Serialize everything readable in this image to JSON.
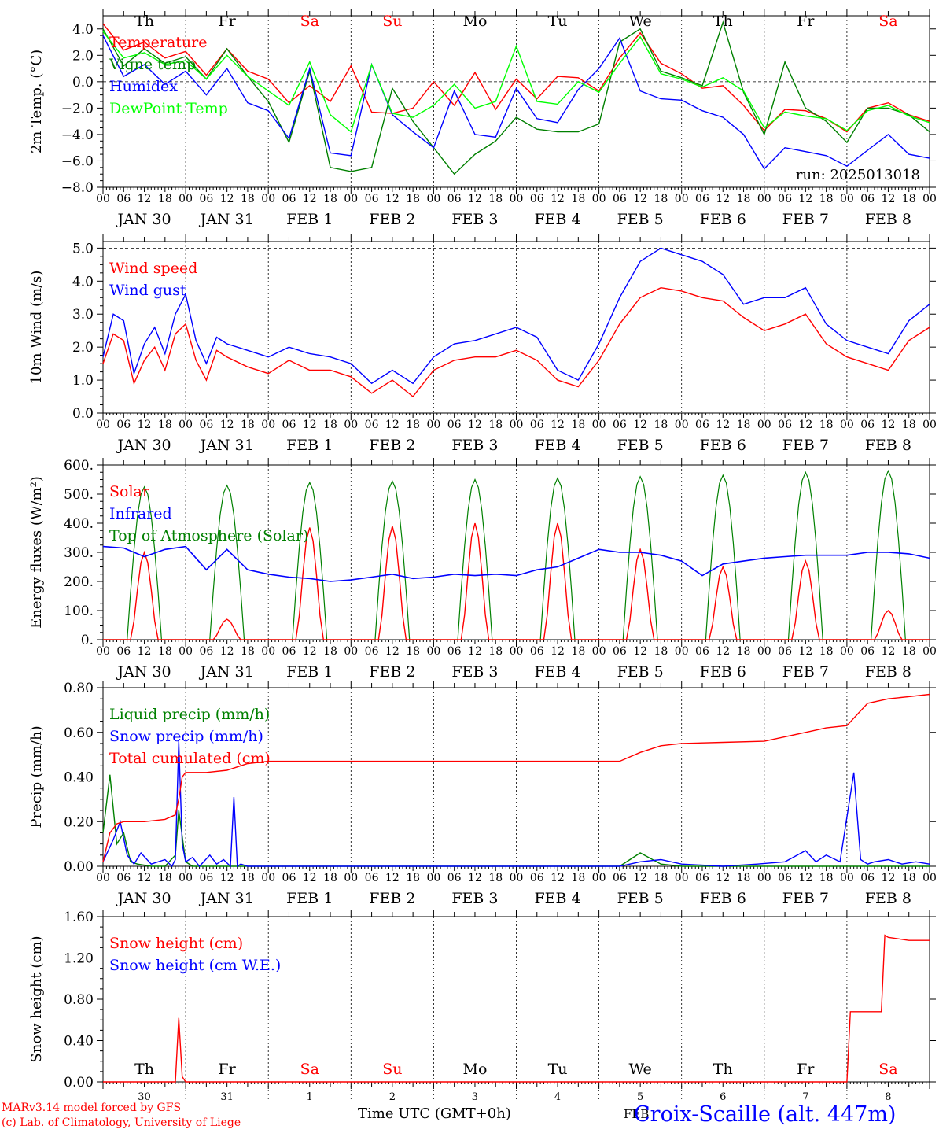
{
  "footer": {
    "credit_line1": "MARv3.14 model forced by GFS",
    "credit_line2": "(c) Lab. of Climatology, University of Liege",
    "xaxis_title": "Time UTC (GMT+0h)",
    "station": "Croix-Scaille (alt. 447m)",
    "month_label": "FEB"
  },
  "colors": {
    "red": "#ff0000",
    "green": "#008000",
    "blue": "#0000ff",
    "lightgreen": "#00ff00",
    "black": "#000000"
  },
  "hour_ticks": [
    "00",
    "06",
    "12",
    "18"
  ],
  "day_labels": [
    "JAN 30",
    "JAN 31",
    "FEB  1",
    "FEB  2",
    "FEB  3",
    "FEB  4",
    "FEB  5",
    "FEB  6",
    "FEB  7",
    "FEB  8"
  ],
  "weekdays": [
    "Th",
    "Fr",
    "Sa",
    "Su",
    "Mo",
    "Tu",
    "We",
    "Th",
    "Fr",
    "Sa"
  ],
  "weekday_colors": [
    "#000000",
    "#000000",
    "#ff0000",
    "#ff0000",
    "#000000",
    "#000000",
    "#000000",
    "#000000",
    "#000000",
    "#ff0000"
  ],
  "bottom_days": [
    "30",
    "31",
    "1",
    "2",
    "3",
    "4",
    "5",
    "6",
    "7",
    "8"
  ],
  "chart_data": [
    {
      "type": "line",
      "id": "temp",
      "ylabel": "2m Temp. (°C)",
      "ylim": [
        -8,
        5
      ],
      "yticks": [
        4,
        2,
        0,
        -2,
        -4,
        -6,
        -8
      ],
      "ytick_labels": [
        "4.0",
        "2.0",
        "0.0",
        "−2.0",
        "−4.0",
        "−6.0",
        "−8.0"
      ],
      "dashed_y": [
        0
      ],
      "annotation": "run: 2025013018",
      "legend": [
        "Temperature",
        "Vigne temp",
        "Humidex",
        "DewPoint Temp"
      ],
      "legend_colors": [
        "#ff0000",
        "#008000",
        "#0000ff",
        "#00ff00"
      ],
      "x_hours": [
        0,
        6,
        12,
        18,
        24,
        30,
        36,
        42,
        48,
        54,
        60,
        66,
        72,
        78,
        84,
        90,
        96,
        102,
        108,
        114,
        120,
        126,
        132,
        138,
        144,
        150,
        156,
        162,
        168,
        174,
        180,
        186,
        192,
        198,
        204,
        210,
        216,
        222,
        228,
        234,
        240
      ],
      "series": [
        {
          "name": "Temperature",
          "color": "#ff0000",
          "values": [
            4.4,
            2.4,
            3.0,
            1.8,
            2.3,
            0.5,
            2.5,
            0.8,
            0.2,
            -1.6,
            -0.3,
            -1.5,
            1.2,
            -2.3,
            -2.4,
            -2.0,
            0.0,
            -1.8,
            0.7,
            -2.1,
            0.2,
            -1.3,
            0.4,
            0.3,
            -0.7,
            1.8,
            3.7,
            1.4,
            0.6,
            -0.5,
            -0.3,
            -1.8,
            -3.7,
            -2.1,
            -2.2,
            -2.8,
            -3.8,
            -2.0,
            -1.6,
            -2.5,
            -3.0
          ]
        },
        {
          "name": "Vigne temp",
          "color": "#008000",
          "values": [
            4.0,
            1.2,
            2.5,
            1.4,
            1.9,
            0.2,
            2.5,
            0.4,
            -1.5,
            -4.6,
            0.8,
            -6.5,
            -6.8,
            -6.5,
            -0.5,
            -3.0,
            -5.0,
            -7.0,
            -5.5,
            -4.5,
            -2.7,
            -3.6,
            -3.8,
            -3.8,
            -3.2,
            3.0,
            4.0,
            0.8,
            0.3,
            -0.3,
            4.5,
            -0.8,
            -4.0,
            1.5,
            -2.0,
            -3.0,
            -4.6,
            -2.0,
            -2.0,
            -2.5,
            -3.8
          ]
        },
        {
          "name": "Humidex",
          "color": "#0000ff",
          "values": [
            3.5,
            0.4,
            1.3,
            -0.2,
            0.8,
            -1.0,
            1.0,
            -1.6,
            -2.2,
            -4.3,
            1.0,
            -5.4,
            -5.6,
            1.3,
            -2.5,
            -3.8,
            -5.0,
            -0.7,
            -4.0,
            -4.2,
            -0.5,
            -2.8,
            -3.1,
            -0.6,
            1.0,
            3.3,
            -0.7,
            -1.3,
            -1.4,
            -2.2,
            -2.7,
            -4.0,
            -6.6,
            -5.0,
            -5.3,
            -5.6,
            -6.4,
            -5.2,
            -4.0,
            -5.5,
            -5.8
          ]
        },
        {
          "name": "DewPoint Temp",
          "color": "#00ff00",
          "values": [
            3.8,
            1.8,
            2.2,
            1.3,
            1.6,
            0.2,
            2.0,
            0.4,
            -0.7,
            -1.8,
            1.5,
            -2.5,
            -3.8,
            1.3,
            -2.4,
            -2.7,
            -1.8,
            -0.2,
            -2.0,
            -1.5,
            2.7,
            -1.5,
            -1.7,
            0.0,
            -0.8,
            1.4,
            3.4,
            0.6,
            0.2,
            -0.4,
            0.3,
            -0.7,
            -3.5,
            -2.3,
            -2.6,
            -2.8,
            -3.7,
            -2.2,
            -1.8,
            -2.6,
            -3.1
          ]
        }
      ]
    },
    {
      "type": "line",
      "id": "wind",
      "ylabel": "10m Wind (m/s)",
      "ylim": [
        0,
        5.2
      ],
      "yticks": [
        0,
        1,
        2,
        3,
        4,
        5
      ],
      "ytick_labels": [
        "0.0",
        "1.0",
        "2.0",
        "3.0",
        "4.0",
        "5.0"
      ],
      "dashed_y": [
        5
      ],
      "legend": [
        "Wind speed",
        "Wind gust"
      ],
      "legend_colors": [
        "#ff0000",
        "#0000ff"
      ],
      "x_hours": [
        0,
        3,
        6,
        9,
        12,
        15,
        18,
        21,
        24,
        27,
        30,
        33,
        36,
        42,
        48,
        54,
        60,
        66,
        72,
        78,
        84,
        90,
        96,
        102,
        108,
        114,
        120,
        126,
        132,
        138,
        144,
        150,
        156,
        162,
        168,
        174,
        180,
        186,
        192,
        198,
        204,
        210,
        216,
        222,
        228,
        234,
        240
      ],
      "series": [
        {
          "name": "Wind speed",
          "color": "#ff0000",
          "values": [
            1.5,
            2.4,
            2.2,
            0.9,
            1.6,
            2.0,
            1.3,
            2.4,
            2.7,
            1.6,
            1.0,
            1.9,
            1.7,
            1.4,
            1.2,
            1.6,
            1.3,
            1.3,
            1.1,
            0.6,
            1.0,
            0.5,
            1.3,
            1.6,
            1.7,
            1.7,
            1.9,
            1.6,
            1.0,
            0.8,
            1.6,
            2.7,
            3.5,
            3.8,
            3.7,
            3.5,
            3.4,
            2.9,
            2.5,
            2.7,
            3.0,
            2.1,
            1.7,
            1.5,
            1.3,
            2.2,
            2.6
          ]
        },
        {
          "name": "Wind gust",
          "color": "#0000ff",
          "values": [
            1.7,
            3.0,
            2.8,
            1.2,
            2.1,
            2.6,
            1.8,
            3.0,
            3.6,
            2.2,
            1.5,
            2.3,
            2.1,
            1.9,
            1.7,
            2.0,
            1.8,
            1.7,
            1.5,
            0.9,
            1.3,
            0.9,
            1.7,
            2.1,
            2.2,
            2.4,
            2.6,
            2.3,
            1.3,
            1.0,
            2.1,
            3.5,
            4.6,
            5.0,
            4.8,
            4.6,
            4.2,
            3.3,
            3.5,
            3.5,
            3.8,
            2.7,
            2.2,
            2.0,
            1.8,
            2.8,
            3.3
          ]
        }
      ]
    },
    {
      "type": "line",
      "id": "flux",
      "ylabel": "Energy fluxes (W/m²)",
      "ylim": [
        0,
        600
      ],
      "yticks": [
        0,
        100,
        200,
        300,
        400,
        500,
        600
      ],
      "ytick_labels": [
        "0.",
        "100.",
        "200.",
        "300.",
        "400.",
        "500.",
        "600."
      ],
      "legend": [
        "Solar",
        "Infrared",
        "Top of Atmosphere (Solar)"
      ],
      "legend_colors": [
        "#ff0000",
        "#0000ff",
        "#008000"
      ],
      "solar_peaks": [
        300,
        70,
        385,
        390,
        400,
        400,
        310,
        250,
        270,
        100
      ],
      "toa_peaks": [
        525,
        530,
        540,
        545,
        550,
        555,
        560,
        565,
        575,
        580
      ],
      "infrared": {
        "name": "Infrared",
        "color": "#0000ff",
        "x_hours": [
          0,
          6,
          12,
          18,
          24,
          30,
          36,
          42,
          48,
          54,
          60,
          66,
          72,
          78,
          84,
          90,
          96,
          102,
          108,
          114,
          120,
          126,
          132,
          138,
          144,
          150,
          156,
          162,
          168,
          174,
          180,
          186,
          192,
          198,
          204,
          210,
          216,
          222,
          228,
          234,
          240
        ],
        "values": [
          320,
          315,
          285,
          310,
          320,
          240,
          310,
          240,
          225,
          215,
          210,
          200,
          205,
          215,
          225,
          210,
          215,
          225,
          220,
          225,
          220,
          240,
          250,
          280,
          310,
          300,
          300,
          290,
          270,
          220,
          260,
          270,
          280,
          285,
          290,
          290,
          290,
          300,
          300,
          295,
          280
        ]
      }
    },
    {
      "type": "line",
      "id": "precip",
      "ylabel": "Precip (mm/h)",
      "ylim": [
        0,
        0.8
      ],
      "yticks": [
        0,
        0.2,
        0.4,
        0.6,
        0.8
      ],
      "ytick_labels": [
        "0.00",
        "0.20",
        "0.40",
        "0.60",
        "0.80"
      ],
      "legend": [
        "Liquid precip (mm/h)",
        "Snow precip (mm/h)",
        "Total cumulated (cm)"
      ],
      "legend_colors": [
        "#008000",
        "#0000ff",
        "#ff0000"
      ],
      "series": [
        {
          "name": "Liquid precip (mm/h)",
          "color": "#008000",
          "x_hours": [
            0,
            2,
            4,
            6,
            8,
            10,
            14,
            18,
            21,
            22,
            24,
            26,
            30,
            36,
            42,
            48,
            150,
            156,
            162,
            168,
            174,
            180,
            186,
            240
          ],
          "values": [
            0.15,
            0.41,
            0.1,
            0.15,
            0.02,
            0.01,
            0.0,
            0.0,
            0.05,
            0.25,
            0.02,
            0.0,
            0.0,
            0.0,
            0.0,
            0.0,
            0.0,
            0.06,
            0.01,
            0.0,
            0.0,
            0.0,
            0.0,
            0.0
          ]
        },
        {
          "name": "Snow precip (mm/h)",
          "color": "#0000ff",
          "x_hours": [
            0,
            3,
            5,
            7,
            9,
            11,
            14,
            18,
            20,
            21,
            22,
            23,
            24,
            26,
            28,
            31,
            33,
            35,
            37,
            38,
            39,
            40,
            42,
            48,
            150,
            156,
            162,
            168,
            180,
            190,
            198,
            204,
            207,
            210,
            214,
            218,
            220,
            222,
            224,
            228,
            232,
            236,
            240
          ],
          "values": [
            0.02,
            0.12,
            0.2,
            0.05,
            0.01,
            0.06,
            0.01,
            0.03,
            0.0,
            0.03,
            0.56,
            0.1,
            0.02,
            0.04,
            0.0,
            0.05,
            0.01,
            0.03,
            0.0,
            0.31,
            0.0,
            0.01,
            0.0,
            0.0,
            0.0,
            0.02,
            0.03,
            0.01,
            0.0,
            0.01,
            0.02,
            0.07,
            0.02,
            0.05,
            0.02,
            0.42,
            0.03,
            0.01,
            0.02,
            0.03,
            0.01,
            0.02,
            0.01
          ]
        },
        {
          "name": "Total cumulated (cm)",
          "color": "#ff0000",
          "x_hours": [
            0,
            2,
            4,
            6,
            12,
            18,
            21,
            22,
            23,
            24,
            30,
            36,
            42,
            48,
            150,
            156,
            162,
            168,
            180,
            192,
            198,
            204,
            210,
            216,
            222,
            228,
            234,
            240
          ],
          "values": [
            0.02,
            0.15,
            0.19,
            0.2,
            0.2,
            0.21,
            0.23,
            0.3,
            0.4,
            0.42,
            0.42,
            0.43,
            0.46,
            0.47,
            0.47,
            0.51,
            0.54,
            0.55,
            0.555,
            0.56,
            0.58,
            0.6,
            0.62,
            0.63,
            0.73,
            0.75,
            0.76,
            0.77
          ]
        }
      ]
    },
    {
      "type": "line",
      "id": "snow",
      "ylabel": "Snow height (cm)",
      "ylim": [
        0,
        1.6
      ],
      "yticks": [
        0,
        0.4,
        0.8,
        1.2,
        1.6
      ],
      "ytick_labels": [
        "0.00",
        "0.40",
        "0.80",
        "1.20",
        "1.60"
      ],
      "legend": [
        "Snow height (cm)",
        "Snow height (cm W.E.)"
      ],
      "legend_colors": [
        "#ff0000",
        "#0000ff"
      ],
      "series": [
        {
          "name": "Snow height (cm)",
          "color": "#ff0000",
          "x_hours": [
            0,
            21,
            22,
            23,
            24,
            216,
            217,
            226,
            227,
            228,
            234,
            240
          ],
          "values": [
            0,
            0,
            0.62,
            0.05,
            0,
            0,
            0.68,
            0.68,
            1.42,
            1.4,
            1.37,
            1.37
          ]
        }
      ]
    }
  ]
}
